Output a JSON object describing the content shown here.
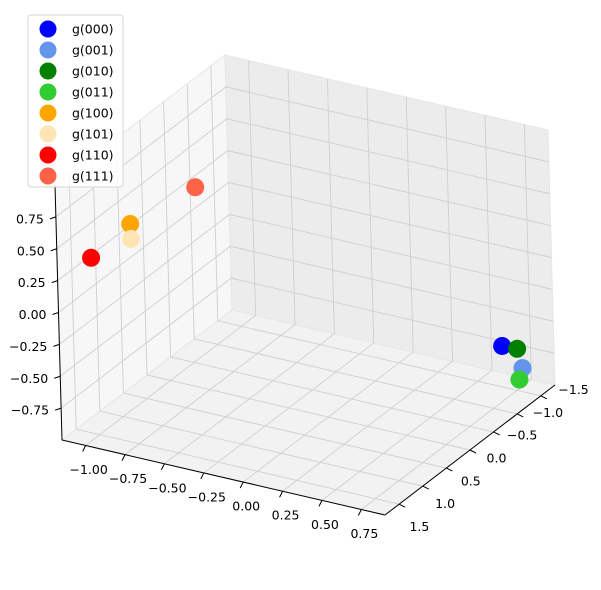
{
  "chart_data": {
    "type": "scatter3d",
    "series": [
      {
        "name": "g(000)",
        "color": "#0000ff",
        "x": 0.8,
        "y": -1.05,
        "z": -0.51
      },
      {
        "name": "g(001)",
        "color": "#6495ed",
        "x": 0.8,
        "y": -1.46,
        "z": -0.8
      },
      {
        "name": "g(010)",
        "color": "#008000",
        "x": 0.8,
        "y": -1.36,
        "z": -0.62
      },
      {
        "name": "g(011)",
        "color": "#32cd32",
        "x": 0.8,
        "y": -1.39,
        "z": -0.87
      },
      {
        "name": "g(100)",
        "color": "#ffa500",
        "x": -1.0,
        "y": 0.75,
        "z": 0.44
      },
      {
        "name": "g(101)",
        "color": "#ffe4b5",
        "x": -1.0,
        "y": 0.74,
        "z": 0.32
      },
      {
        "name": "g(110)",
        "color": "#ff0000",
        "x": -1.0,
        "y": 1.58,
        "z": 0.41
      },
      {
        "name": "g(111)",
        "color": "#ff6347",
        "x": -1.0,
        "y": -0.62,
        "z": 0.34
      }
    ],
    "xlim": [
      -1.15,
      0.9
    ],
    "ylim": [
      -1.8,
      1.8
    ],
    "zlim": [
      -1,
      1
    ],
    "xticks": [
      {
        "value": -1,
        "label": "−1.00"
      },
      {
        "value": -0.75,
        "label": "−0.75"
      },
      {
        "value": -0.5,
        "label": "−0.50"
      },
      {
        "value": -0.25,
        "label": "−0.25"
      },
      {
        "value": 0,
        "label": "0.00"
      },
      {
        "value": 0.25,
        "label": "0.25"
      },
      {
        "value": 0.5,
        "label": "0.50"
      },
      {
        "value": 0.75,
        "label": "0.75"
      }
    ],
    "yticks": [
      {
        "value": -1.5,
        "label": "−1.5"
      },
      {
        "value": -1,
        "label": "−1.0"
      },
      {
        "value": -0.5,
        "label": "−0.5"
      },
      {
        "value": 0,
        "label": "0.0"
      },
      {
        "value": 0.5,
        "label": "0.5"
      },
      {
        "value": 1,
        "label": "1.0"
      },
      {
        "value": 1.5,
        "label": "1.5"
      }
    ],
    "zticks": [
      {
        "value": -0.75,
        "label": "−0.75"
      },
      {
        "value": -0.5,
        "label": "−0.50"
      },
      {
        "value": -0.25,
        "label": "−0.25"
      },
      {
        "value": 0,
        "label": "0.00"
      },
      {
        "value": 0.25,
        "label": "0.25"
      },
      {
        "value": 0.5,
        "label": "0.50"
      },
      {
        "value": 0.75,
        "label": "0.75"
      }
    ],
    "grid": true,
    "legend": "upper left"
  }
}
